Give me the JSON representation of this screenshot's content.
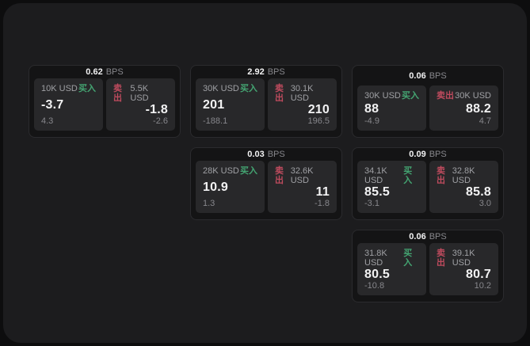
{
  "labels": {
    "bps_unit": "BPS",
    "buy": "买入",
    "sell": "卖出"
  },
  "colors": {
    "page_bg": "#0d0d0e",
    "panel_bg": "#1c1c1e",
    "card_bg": "#141415",
    "tile_bg": "#28282a",
    "buy_green": "#44a572",
    "sell_red": "#bf4b5e"
  },
  "cards": [
    {
      "bps": "0.62",
      "buy": {
        "size": "10K USD",
        "price": "-3.7",
        "delta": "4.3"
      },
      "sell": {
        "size": "5.5K USD",
        "price": "-1.8",
        "delta": "-2.6"
      }
    },
    {
      "bps": "2.92",
      "buy": {
        "size": "30K USD",
        "price": "201",
        "delta": "-188.1"
      },
      "sell": {
        "size": "30.1K USD",
        "price": "210",
        "delta": "196.5"
      }
    },
    {
      "bps": "0.06",
      "buy": {
        "size": "30K USD",
        "price": "88",
        "delta": "-4.9"
      },
      "sell": {
        "size": "30K USD",
        "price": "88.2",
        "delta": "4.7"
      }
    },
    {
      "bps": "0.03",
      "buy": {
        "size": "28K USD",
        "price": "10.9",
        "delta": "1.3"
      },
      "sell": {
        "size": "32.6K USD",
        "price": "11",
        "delta": "-1.8"
      }
    },
    {
      "bps": "0.09",
      "buy": {
        "size": "34.1K USD",
        "price": "85.5",
        "delta": "-3.1"
      },
      "sell": {
        "size": "32.8K USD",
        "price": "85.8",
        "delta": "3.0"
      }
    },
    {
      "bps": "0.06",
      "buy": {
        "size": "31.8K USD",
        "price": "80.5",
        "delta": "-10.8"
      },
      "sell": {
        "size": "39.1K USD",
        "price": "80.7",
        "delta": "10.2"
      }
    }
  ]
}
